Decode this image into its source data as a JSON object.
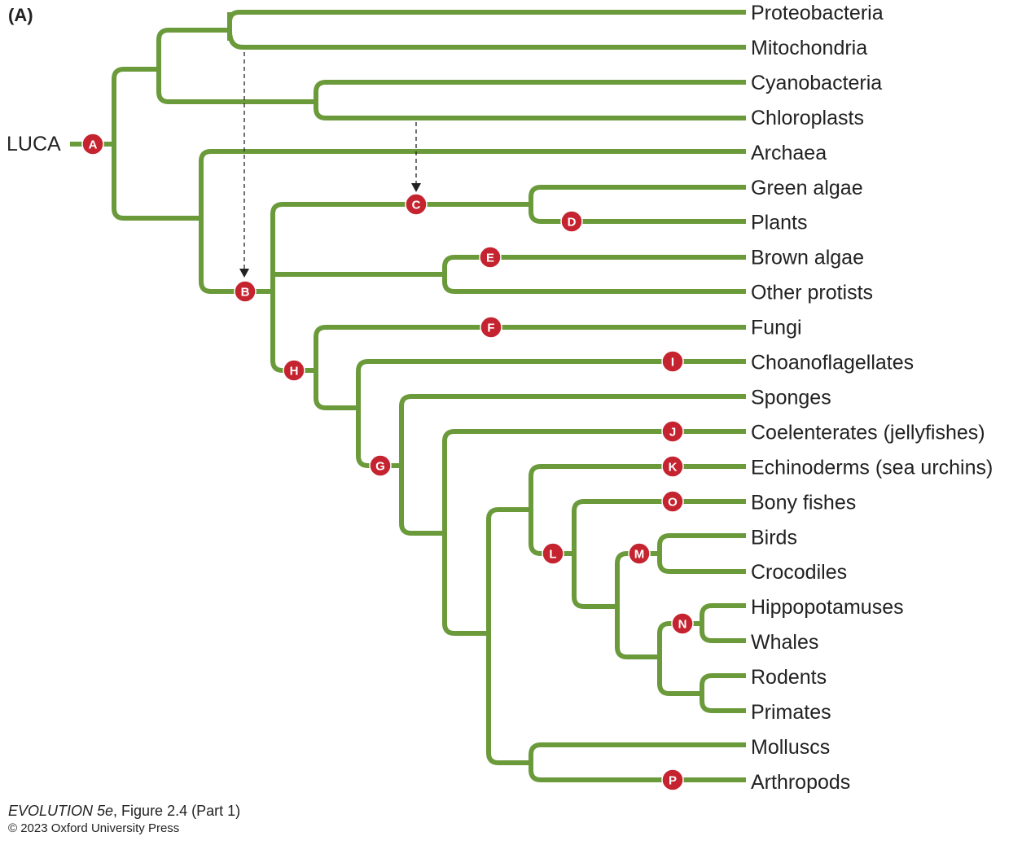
{
  "panel_label": "(A)",
  "root_label": "LUCA",
  "taxa": [
    "Proteobacteria",
    "Mitochondria",
    "Cyanobacteria",
    "Chloroplasts",
    "Archaea",
    "Green algae",
    "Plants",
    "Brown algae",
    "Other protists",
    "Fungi",
    "Choanoflagellates",
    "Sponges",
    "Coelenterates (jellyfishes)",
    "Echinoderms (sea urchins)",
    "Bony fishes",
    "Birds",
    "Crocodiles",
    "Hippopotamuses",
    "Whales",
    "Rodents",
    "Primates",
    "Molluscs",
    "Arthropods"
  ],
  "node_labels": [
    "A",
    "B",
    "C",
    "D",
    "E",
    "F",
    "G",
    "H",
    "I",
    "J",
    "K",
    "L",
    "M",
    "N",
    "O",
    "P"
  ],
  "colors": {
    "branch": "#6a9a3a",
    "node": "#c4232f"
  },
  "caption": {
    "title_italic": "EVOLUTION 5e",
    "title_rest": ", Figure 2.4 (Part 1)",
    "copyright": "© 2023 Oxford University Press"
  }
}
